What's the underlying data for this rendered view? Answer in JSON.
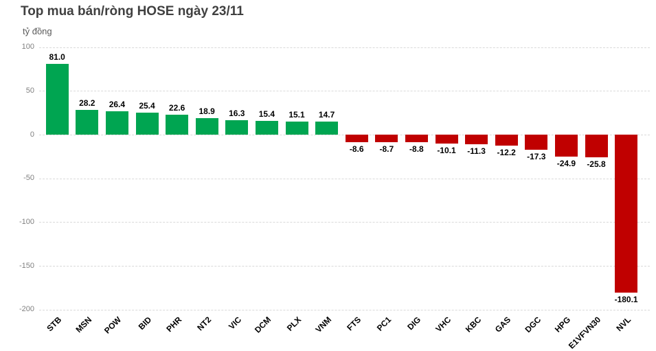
{
  "chart_data": {
    "type": "bar",
    "title": "Top mua bán/ròng HOSE ngày 23/11",
    "unit": "tỷ đồng",
    "xlabel": "",
    "ylabel": "tỷ đồng",
    "categories": [
      "STB",
      "MSN",
      "POW",
      "BID",
      "PHR",
      "NT2",
      "VIC",
      "DCM",
      "PLX",
      "VNM",
      "FTS",
      "PC1",
      "DIG",
      "VHC",
      "KBC",
      "GAS",
      "DGC",
      "HPG",
      "E1VFVN30",
      "NVL"
    ],
    "values": [
      81.0,
      28.2,
      26.4,
      25.4,
      22.6,
      18.9,
      16.3,
      15.4,
      15.1,
      14.7,
      -8.6,
      -8.7,
      -8.8,
      -10.1,
      -11.3,
      -12.2,
      -17.3,
      -24.9,
      -25.8,
      -180.1
    ],
    "value_label_decimals": 1,
    "yticks": [
      100,
      50,
      0,
      -50,
      -100,
      -150,
      -200
    ],
    "ylim": [
      -200,
      100
    ],
    "grid": true,
    "legend": false
  },
  "styles": {
    "positive_bar_color": "#00A551",
    "negative_bar_color": "#C00000",
    "title_color": "#404040",
    "unit_color": "#595959",
    "axis_tick_color": "#7F7F7F",
    "gridline_color": "#D9D9D9",
    "value_label_color": "#000000",
    "category_label_color": "#000000"
  }
}
